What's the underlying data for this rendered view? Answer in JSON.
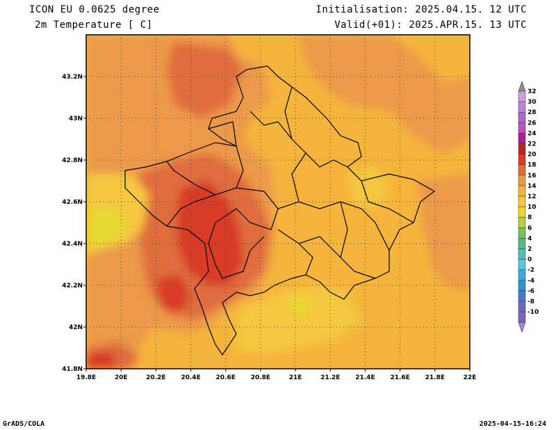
{
  "header": {
    "model": "ICON EU 0.0625 degree",
    "field": "2m Temperature [ C]",
    "init": "Initialisation: 2025.04.15. 12 UTC",
    "valid": "Valid(+01): 2025.APR.15. 13 UTC"
  },
  "footer": {
    "software": "GrADS/COLA",
    "timestamp": "2025-04-15-16:24"
  },
  "map": {
    "lon_range": [
      19.8,
      22.0
    ],
    "lat_range": [
      41.8,
      43.4
    ],
    "lon_ticks": [
      "19.8E",
      "20E",
      "20.2E",
      "20.4E",
      "20.6E",
      "20.8E",
      "21E",
      "21.2E",
      "21.4E",
      "21.6E",
      "21.8E",
      "22E"
    ],
    "lat_ticks": [
      "41.8N",
      "42N",
      "42.2N",
      "42.4N",
      "42.6N",
      "42.8N",
      "43N",
      "43.2N"
    ],
    "grid": true
  },
  "colorbar": {
    "labels": [
      "32",
      "30",
      "28",
      "26",
      "24",
      "22",
      "20",
      "18",
      "16",
      "14",
      "12",
      "10",
      "8",
      "6",
      "4",
      "2",
      "0",
      "-2",
      "-4",
      "-6",
      "-8",
      "-10"
    ],
    "colors": [
      "#c9a3d8",
      "#b888d8",
      "#a96ac8",
      "#c050c0",
      "#b01c96",
      "#b02a20",
      "#d83a28",
      "#e06d3c",
      "#ec9a4a",
      "#f5b53c",
      "#f5c840",
      "#e8d830",
      "#b8d040",
      "#78c060",
      "#58b888",
      "#50c0b8",
      "#58c8e0",
      "#40a8e0",
      "#3090d0",
      "#4878c8",
      "#6868c0",
      "#8060b8"
    ],
    "top_arrow_color": "#909090",
    "bottom_arrow_color": "#a888d0"
  }
}
